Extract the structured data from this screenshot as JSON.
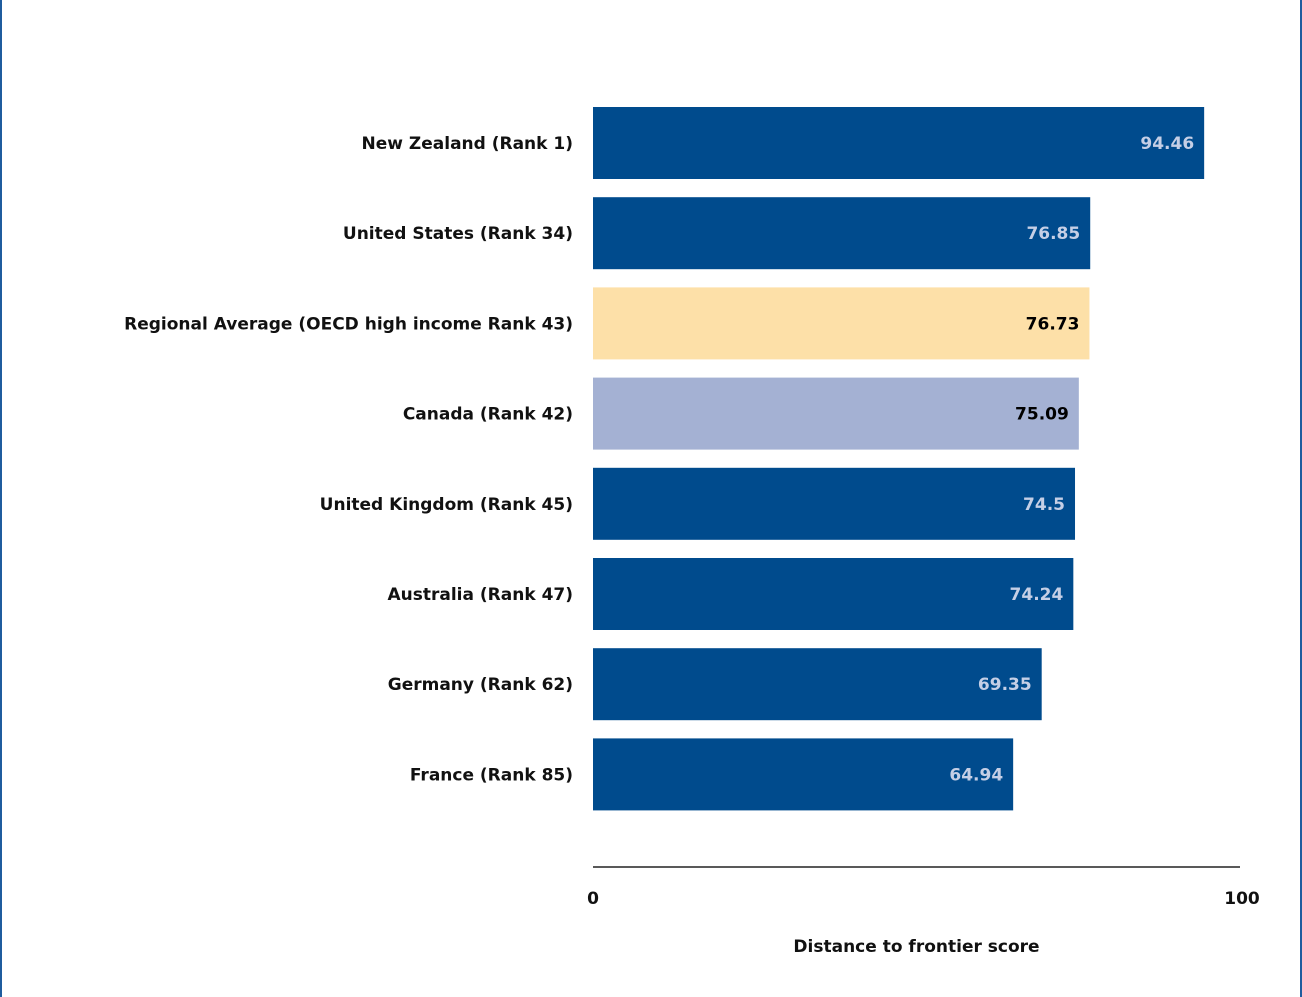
{
  "colors": {
    "default_bar": "#004b8d",
    "regional_bar": "#fde0a8",
    "country_bar": "#a4b1d3",
    "default_value_text": "#c5cfe6",
    "highlight_value_text": "#000000",
    "frame": "#1f5c9e"
  },
  "chart_data": {
    "type": "bar",
    "orientation": "horizontal",
    "categories": [
      "New Zealand (Rank 1)",
      "United States (Rank 34)",
      "Regional Average (OECD high income Rank 43)",
      "Canada (Rank 42)",
      "United Kingdom (Rank 45)",
      "Australia (Rank 47)",
      "Germany (Rank 62)",
      "France (Rank 85)"
    ],
    "values": [
      94.46,
      76.85,
      76.73,
      75.09,
      74.5,
      74.24,
      69.35,
      64.94
    ],
    "value_labels": [
      "94.46",
      "76.85",
      "76.73",
      "75.09",
      "74.5",
      "74.24",
      "69.35",
      "64.94"
    ],
    "bar_styles": [
      "default",
      "default",
      "regional",
      "country",
      "default",
      "default",
      "default",
      "default"
    ],
    "xlim": [
      0,
      100
    ],
    "x_ticks": [
      "0",
      "100"
    ],
    "xlabel": "Distance to frontier score",
    "grid": false
  }
}
